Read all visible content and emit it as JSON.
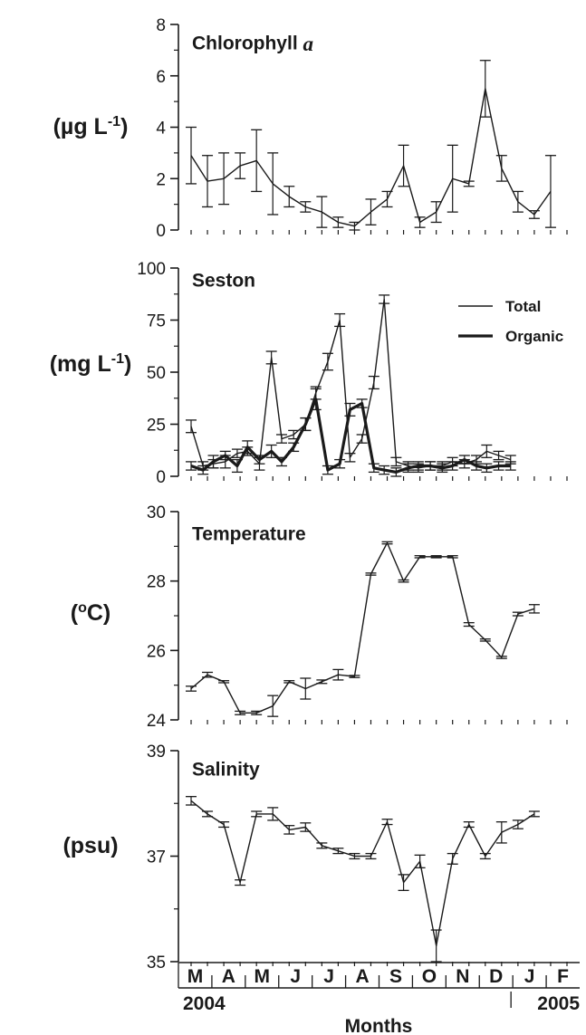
{
  "chart_data": [
    {
      "type": "line",
      "title": "Chlorophyll ",
      "title_italic": "a",
      "ylabel": "(µg L",
      "ylabel_sup": "-1",
      "ylabel_end": ")",
      "ylim": [
        0,
        8
      ],
      "yticks": [
        0,
        2,
        4,
        6,
        8
      ],
      "series": [
        {
          "style": "thin",
          "x": [
            0,
            1,
            2,
            3,
            4,
            5,
            6,
            7,
            8,
            9,
            10,
            11,
            12,
            13,
            14,
            15,
            16,
            17,
            18,
            19,
            20,
            21,
            22,
            23
          ],
          "values": [
            2.9,
            1.9,
            2.0,
            2.5,
            2.7,
            1.8,
            1.3,
            0.9,
            0.7,
            0.3,
            0.15,
            0.7,
            1.2,
            2.5,
            0.3,
            0.7,
            2.0,
            1.8,
            5.5,
            2.4,
            1.1,
            0.6,
            1.5,
            null
          ],
          "err": [
            1.1,
            1.0,
            1.0,
            0.5,
            1.2,
            1.2,
            0.4,
            0.2,
            0.6,
            0.2,
            0.15,
            0.5,
            0.3,
            0.8,
            0.2,
            0.4,
            1.3,
            0.1,
            1.1,
            0.5,
            0.4,
            0.15,
            1.4,
            null
          ]
        }
      ]
    },
    {
      "type": "line",
      "title": "Seston",
      "ylabel": "(mg L",
      "ylabel_sup": "-1",
      "ylabel_end": ")",
      "ylim": [
        0,
        100
      ],
      "yticks": [
        0,
        25,
        50,
        75,
        100
      ],
      "legend": [
        "Total",
        "Organic"
      ],
      "series": [
        {
          "name": "Total",
          "style": "thin",
          "x": [
            0,
            0.7,
            1.3,
            2.0,
            2.7,
            3.3,
            4.0,
            4.7,
            5.3,
            6.0,
            6.7,
            7.3,
            8.0,
            8.7,
            9.3,
            10.0,
            10.7,
            11.3,
            12.0,
            12.7,
            13.3,
            14.0,
            14.7,
            15.3,
            16.0,
            16.7,
            17.3,
            18.0,
            18.7,
            19.3,
            20.0,
            20.7,
            21.3,
            22.0
          ],
          "values": [
            24,
            5,
            6,
            7,
            11,
            12,
            6,
            57,
            18,
            20,
            25,
            40,
            55,
            75,
            9,
            18,
            45,
            85,
            7,
            5,
            4,
            5,
            5,
            7,
            6,
            8,
            12,
            10,
            8,
            null,
            null,
            null,
            null,
            null
          ],
          "err": [
            3,
            2,
            2,
            3,
            2,
            2,
            3,
            3,
            2,
            2,
            3,
            3,
            4,
            3,
            2,
            2,
            3,
            2,
            2,
            2,
            2,
            2,
            2,
            2,
            2,
            2,
            3,
            2,
            2,
            null,
            null,
            null,
            null,
            null
          ]
        },
        {
          "name": "Organic",
          "style": "thick",
          "x": [
            0,
            0.7,
            1.3,
            2.0,
            2.7,
            3.3,
            4.0,
            4.7,
            5.3,
            6.0,
            6.7,
            7.3,
            8.0,
            8.7,
            9.3,
            10.0,
            10.7,
            11.3,
            12.0,
            12.7,
            13.3,
            14.0,
            14.7,
            15.3,
            16.0,
            16.7,
            17.3,
            18.0,
            18.7
          ],
          "values": [
            5,
            3,
            7,
            10,
            5,
            14,
            8,
            12,
            7,
            14,
            25,
            37,
            3,
            6,
            32,
            35,
            4,
            3,
            2,
            4,
            5,
            5,
            4,
            5,
            8,
            5,
            4,
            5,
            5
          ],
          "err": [
            2,
            2,
            3,
            2,
            3,
            3,
            2,
            3,
            2,
            2,
            3,
            5,
            2,
            2,
            3,
            2,
            2,
            2,
            2,
            2,
            2,
            2,
            2,
            2,
            2,
            2,
            2,
            2,
            2
          ]
        }
      ]
    },
    {
      "type": "line",
      "title": "Temperature",
      "ylabel": "(",
      "ylabel_sup": "o",
      "ylabel_end": "C)",
      "ylim": [
        24,
        30
      ],
      "yticks": [
        24,
        26,
        28,
        30
      ],
      "series": [
        {
          "style": "thin",
          "x": [
            0,
            1,
            2,
            3,
            4,
            5,
            6,
            7,
            8,
            9,
            10,
            11,
            12,
            13,
            14,
            15,
            16,
            17,
            18,
            19,
            20,
            21,
            22,
            23
          ],
          "values": [
            24.9,
            25.3,
            25.1,
            24.2,
            24.2,
            24.4,
            25.1,
            24.9,
            25.1,
            25.3,
            25.25,
            28.2,
            29.1,
            28.0,
            28.7,
            28.7,
            28.7,
            26.75,
            26.3,
            25.8,
            27.05,
            27.2,
            null,
            null
          ],
          "err": [
            0.07,
            0.07,
            0.03,
            0.05,
            0.05,
            0.3,
            0.03,
            0.3,
            0.05,
            0.15,
            0.03,
            0.03,
            0.03,
            0.03,
            0.03,
            0.03,
            0.03,
            0.05,
            0.03,
            0.03,
            0.05,
            0.12,
            null,
            null
          ]
        }
      ]
    },
    {
      "type": "line",
      "title": "Salinity",
      "ylabel": "(psu)",
      "ylim": [
        35,
        39
      ],
      "yticks": [
        35,
        37,
        39
      ],
      "series": [
        {
          "style": "thin",
          "x": [
            0,
            1,
            2,
            3,
            4,
            5,
            6,
            7,
            8,
            9,
            10,
            11,
            12,
            13,
            14,
            15,
            16,
            17,
            18,
            19,
            20,
            21,
            22,
            23
          ],
          "values": [
            38.05,
            37.8,
            37.6,
            36.5,
            37.8,
            37.8,
            37.5,
            37.55,
            37.2,
            37.1,
            37.0,
            37.0,
            37.65,
            36.5,
            36.9,
            35.3,
            36.95,
            37.6,
            37.0,
            37.45,
            37.6,
            37.8,
            null,
            null
          ],
          "err": [
            0.08,
            0.05,
            0.05,
            0.05,
            0.05,
            0.12,
            0.08,
            0.08,
            0.05,
            0.05,
            0.05,
            0.05,
            0.05,
            0.15,
            0.12,
            0.3,
            0.1,
            0.05,
            0.05,
            0.2,
            0.08,
            0.05,
            null,
            null
          ]
        }
      ]
    }
  ],
  "x_axis": {
    "months": [
      "M",
      "A",
      "M",
      "J",
      "J",
      "A",
      "S",
      "O",
      "N",
      "D",
      "J",
      "F"
    ],
    "years": [
      "2004",
      "2005"
    ],
    "xlabel": "Months"
  }
}
